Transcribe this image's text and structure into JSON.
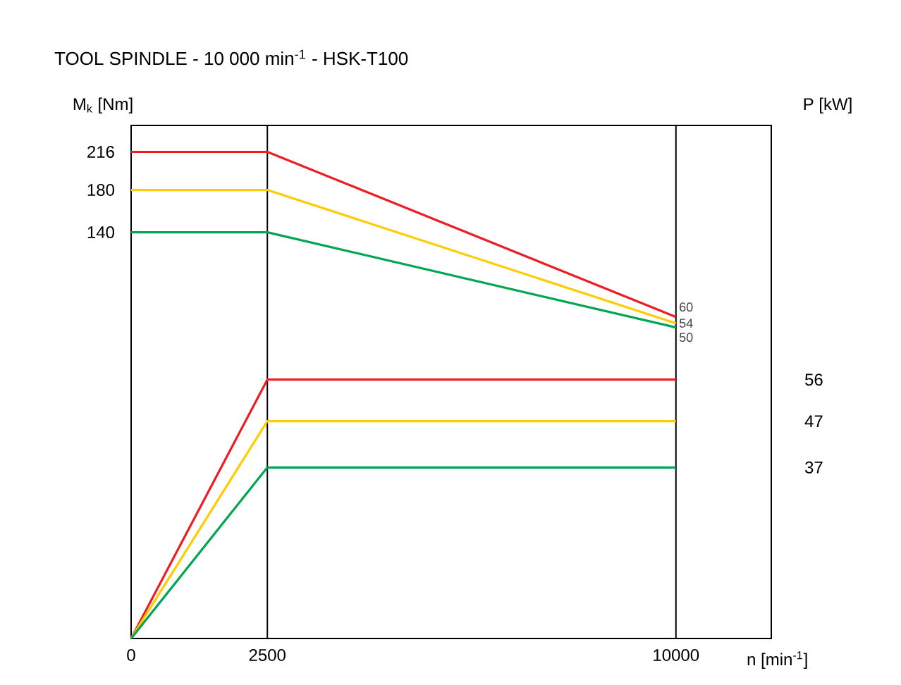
{
  "chart_data": {
    "type": "line",
    "title": "TOOL SPINDLE - 10 000 min$^{-1}$ - HSK-T100",
    "xlabel": "n [min$^{-1}$]",
    "ylabel": "M$_{k}$ [Nm]",
    "y2label": "P [kW]",
    "x": [
      0,
      2500,
      10000
    ],
    "xlim": [
      0,
      11750
    ],
    "xticks": [
      0,
      2500,
      10000
    ],
    "ylim": [
      -244,
      241
    ],
    "yticks": [
      140,
      180,
      216
    ],
    "y2lim": [
      0,
      111
    ],
    "y2ticks": [
      37,
      47,
      56
    ],
    "line_style": "solid",
    "series": [
      {
        "color": "#ee1c25",
        "values": [
          216,
          216,
          60
        ],
        "value_labels": [
          null,
          null,
          "60"
        ]
      },
      {
        "color": "#ffcc00",
        "values": [
          180,
          180,
          54
        ],
        "value_labels": [
          null,
          null,
          "54"
        ]
      },
      {
        "color": "#00a651",
        "values": [
          140,
          140,
          50
        ],
        "value_labels": [
          null,
          null,
          "50"
        ]
      },
      {
        "color": "#ee1c25",
        "values": [
          0,
          56,
          56
        ],
        "axis": "y2"
      },
      {
        "color": "#ffcc00",
        "values": [
          0,
          47,
          47
        ],
        "axis": "y2"
      },
      {
        "color": "#00a651",
        "values": [
          0,
          37,
          37
        ],
        "axis": "y2"
      }
    ],
    "ref_lines": [
      {
        "axis": "x",
        "value": 2500,
        "color": "#000000"
      },
      {
        "axis": "x",
        "value": 10000,
        "color": "#000000"
      }
    ]
  }
}
